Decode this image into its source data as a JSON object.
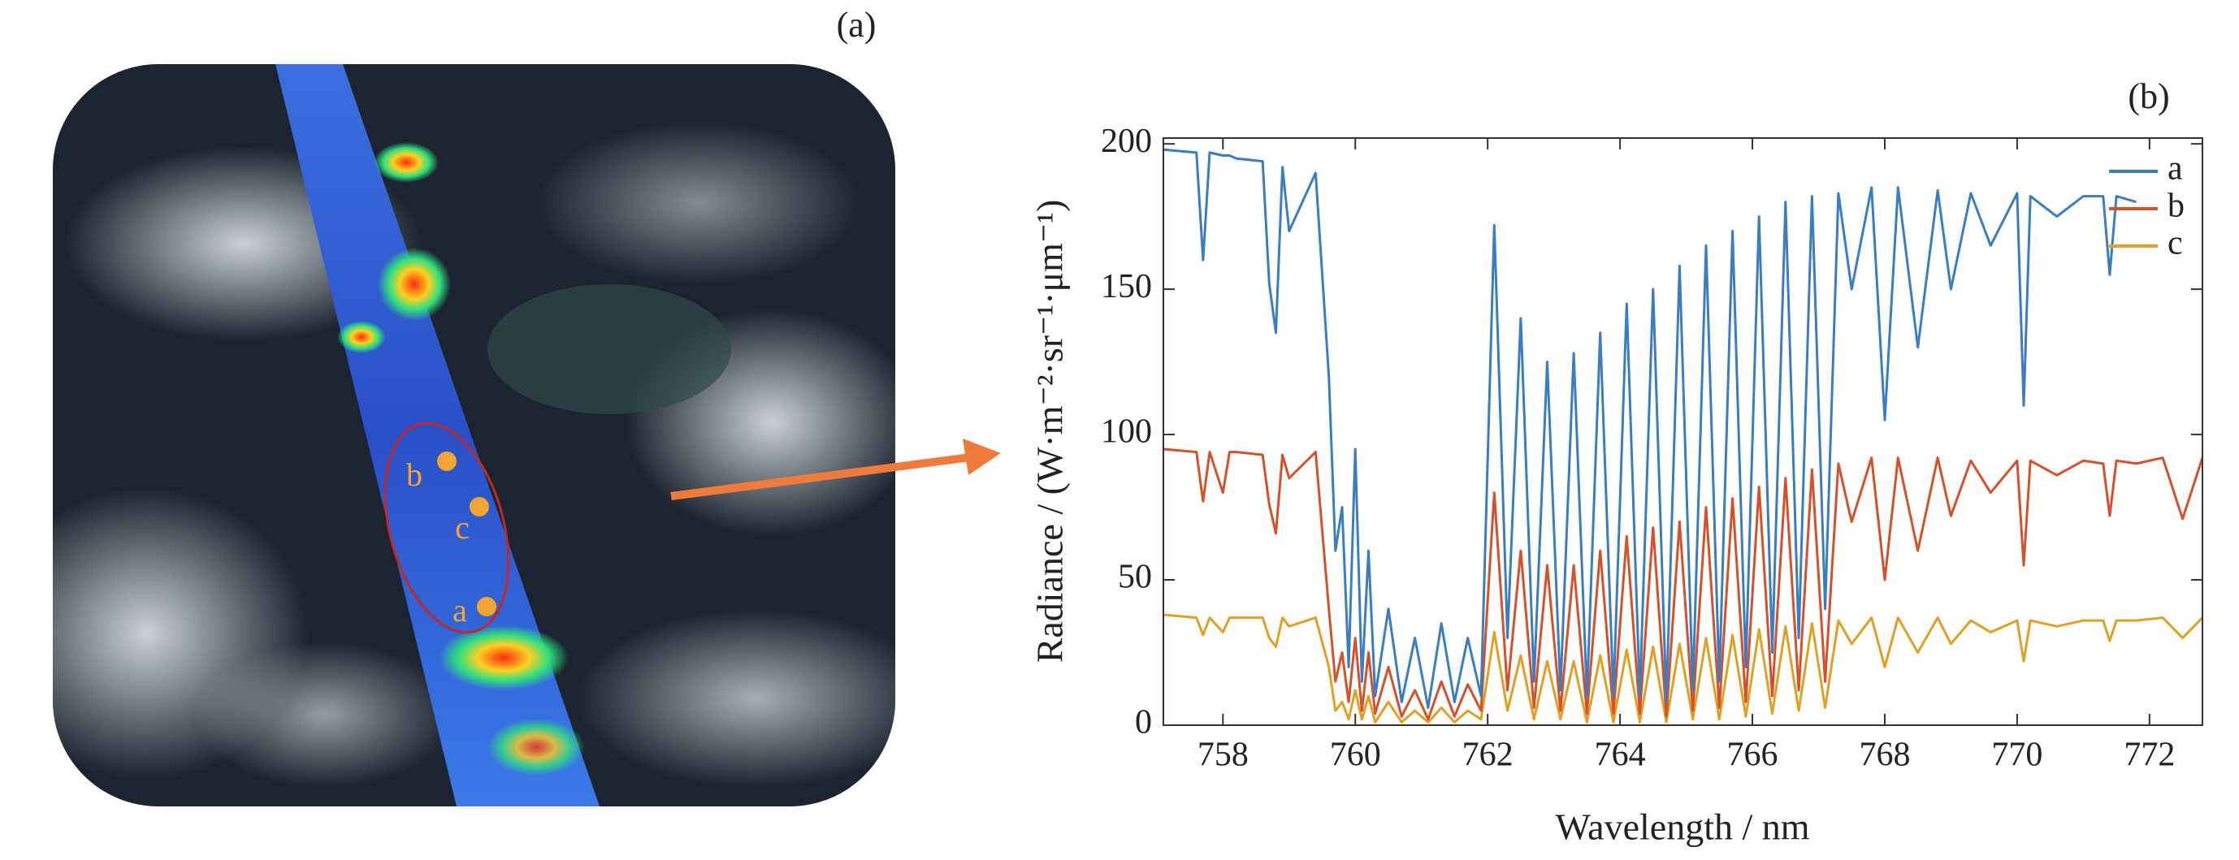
{
  "panel_a": {
    "label": "(a)",
    "points": [
      "a",
      "b",
      "c"
    ]
  },
  "chart_data": {
    "type": "line",
    "title": "(b)",
    "x_label": "Wavelength / nm",
    "y_label": "Radiance / (W·m⁻²·sr⁻¹·μm⁻¹)",
    "x": [
      757.1,
      757.6,
      757.7,
      757.8,
      758.0,
      758.1,
      758.2,
      758.6,
      758.7,
      758.8,
      758.9,
      759.0,
      759.4,
      759.6,
      759.7,
      759.8,
      759.9,
      760.0,
      760.1,
      760.2,
      760.3,
      760.5,
      760.7,
      760.9,
      761.1,
      761.3,
      761.5,
      761.7,
      761.9,
      762.1,
      762.3,
      762.5,
      762.7,
      762.9,
      763.1,
      763.3,
      763.5,
      763.7,
      763.9,
      764.1,
      764.3,
      764.5,
      764.7,
      764.9,
      765.1,
      765.3,
      765.5,
      765.7,
      765.9,
      766.1,
      766.3,
      766.5,
      766.7,
      766.9,
      767.1,
      767.3,
      767.5,
      767.8,
      768.0,
      768.2,
      768.5,
      768.8,
      769.0,
      769.3,
      769.6,
      770.0,
      770.1,
      770.2,
      770.6,
      771.0,
      771.3,
      771.4,
      771.5,
      771.8,
      772.2,
      772.5,
      772.8
    ],
    "series": [
      {
        "name": "a",
        "color": "#3b7dc1",
        "values": [
          198,
          197,
          160,
          197,
          196,
          196,
          195,
          194,
          152,
          135,
          192,
          170,
          190,
          120,
          60,
          75,
          20,
          95,
          15,
          60,
          10,
          40,
          8,
          30,
          6,
          35,
          8,
          30,
          10,
          172,
          30,
          140,
          15,
          125,
          12,
          128,
          10,
          135,
          10,
          145,
          10,
          150,
          8,
          158,
          12,
          165,
          15,
          170,
          20,
          175,
          25,
          180,
          30,
          182,
          40,
          183,
          150,
          185,
          105,
          185,
          130,
          184,
          150,
          183,
          165,
          183,
          110,
          182,
          175,
          182,
          182,
          155,
          182,
          180,
          null,
          null,
          null
        ]
      },
      {
        "name": "b",
        "color": "#d5512b",
        "values": [
          95,
          94,
          77,
          94,
          80,
          94,
          94,
          93,
          76,
          66,
          93,
          85,
          94,
          40,
          15,
          25,
          8,
          30,
          5,
          25,
          4,
          20,
          3,
          12,
          2,
          15,
          3,
          14,
          5,
          80,
          12,
          60,
          6,
          55,
          5,
          55,
          4,
          60,
          4,
          65,
          4,
          68,
          3,
          70,
          5,
          75,
          6,
          78,
          8,
          82,
          10,
          85,
          12,
          88,
          15,
          90,
          70,
          92,
          50,
          92,
          60,
          92,
          72,
          91,
          80,
          91,
          55,
          91,
          86,
          91,
          90,
          72,
          91,
          90,
          92,
          71,
          92
        ]
      },
      {
        "name": "c",
        "color": "#e0a024",
        "values": [
          38,
          37,
          31,
          37,
          32,
          37,
          37,
          37,
          30,
          27,
          37,
          34,
          37,
          20,
          5,
          8,
          2,
          12,
          2,
          10,
          1,
          8,
          1,
          5,
          1,
          6,
          1,
          5,
          2,
          32,
          5,
          24,
          2,
          22,
          2,
          22,
          1,
          24,
          1,
          26,
          1,
          27,
          1,
          28,
          2,
          30,
          2,
          31,
          3,
          33,
          4,
          34,
          5,
          35,
          6,
          36,
          28,
          37,
          20,
          37,
          25,
          37,
          28,
          36,
          32,
          36,
          22,
          36,
          34,
          36,
          36,
          29,
          36,
          36,
          37,
          30,
          37
        ]
      }
    ],
    "xlim": [
      757.1,
      772.8
    ],
    "xticks": [
      758,
      760,
      762,
      764,
      766,
      768,
      770,
      772
    ],
    "ylim": [
      0,
      202
    ],
    "yticks": [
      0,
      50,
      100,
      150,
      200
    ],
    "legend": "upper right"
  }
}
